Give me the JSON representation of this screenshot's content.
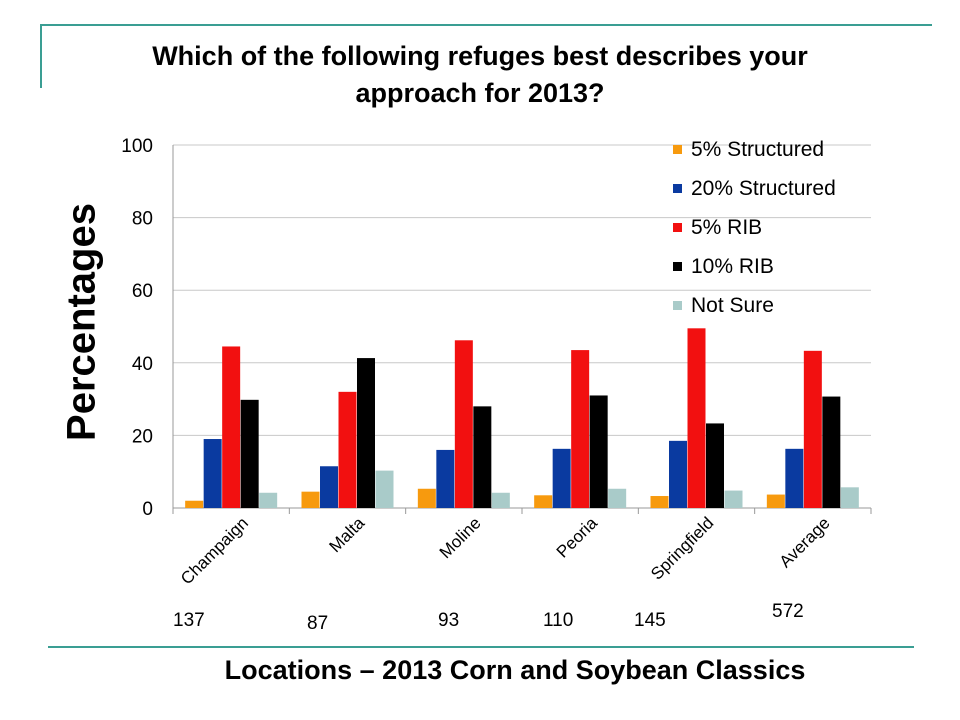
{
  "slide": {
    "title_line1": "Which of the following refuges best describes your",
    "title_line2": "approach for 2013?",
    "y_axis_label": "Percentages",
    "x_axis_label": "Locations – 2013 Corn and Soybean Classics",
    "rule_color": "#3a9e93"
  },
  "respondent_counts": [
    {
      "location": "Champaign",
      "n": "137"
    },
    {
      "location": "Malta",
      "n": "87"
    },
    {
      "location": "Moline",
      "n": "93"
    },
    {
      "location": "Peoria",
      "n": "110"
    },
    {
      "location": "Springfield",
      "n": "145"
    },
    {
      "location": "Average",
      "n": "572"
    }
  ],
  "chart_data": {
    "type": "bar",
    "title": "",
    "xlabel": "",
    "ylabel": "Percentages",
    "ylim": [
      0,
      100
    ],
    "yticks": [
      0,
      20,
      40,
      60,
      80,
      100
    ],
    "grid": true,
    "legend_position": "top-right",
    "categories": [
      "Champaign",
      "Malta",
      "Moline",
      "Peoria",
      "Springfield",
      "Average"
    ],
    "series": [
      {
        "name": "5% Structured",
        "color": "#f79a0e",
        "values": [
          2,
          4.5,
          5.3,
          3.5,
          3.3,
          3.7
        ]
      },
      {
        "name": "20% Structured",
        "color": "#0a3aa0",
        "values": [
          19,
          11.5,
          16,
          16.3,
          18.5,
          16.3
        ]
      },
      {
        "name": "5% RIB",
        "color": "#f21010",
        "values": [
          44.5,
          32,
          46.2,
          43.5,
          49.5,
          43.3
        ]
      },
      {
        "name": "10% RIB",
        "color": "#000000",
        "values": [
          29.8,
          41.3,
          28,
          31,
          23.3,
          30.7
        ]
      },
      {
        "name": "Not Sure",
        "color": "#a9cbc9",
        "values": [
          4.2,
          10.3,
          4.2,
          5.3,
          4.8,
          5.7
        ]
      }
    ]
  }
}
